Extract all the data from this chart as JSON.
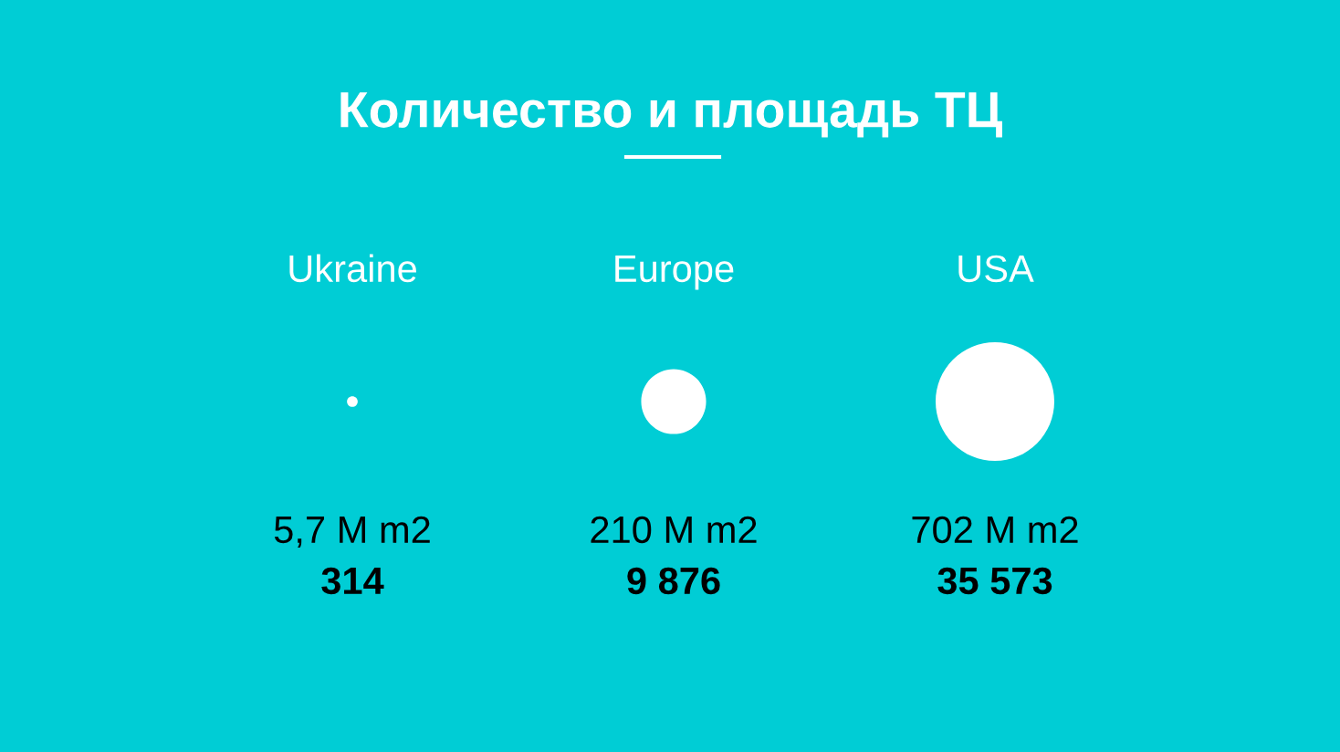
{
  "chart_data": {
    "type": "other",
    "title": "Количество и площадь ТЦ",
    "categories": [
      "Ukraine",
      "Europe",
      "USA"
    ],
    "series": [
      {
        "color": "#ffffff",
        "values": [
          5.7,
          210,
          702
        ],
        "value_labels": [
          "5,7 M m2",
          "210 M m2",
          "702 M m2"
        ]
      },
      {
        "color": "#000000",
        "values": [
          314,
          9876,
          35573
        ],
        "value_labels": [
          "314",
          "9 876",
          "35 573"
        ]
      }
    ]
  }
}
